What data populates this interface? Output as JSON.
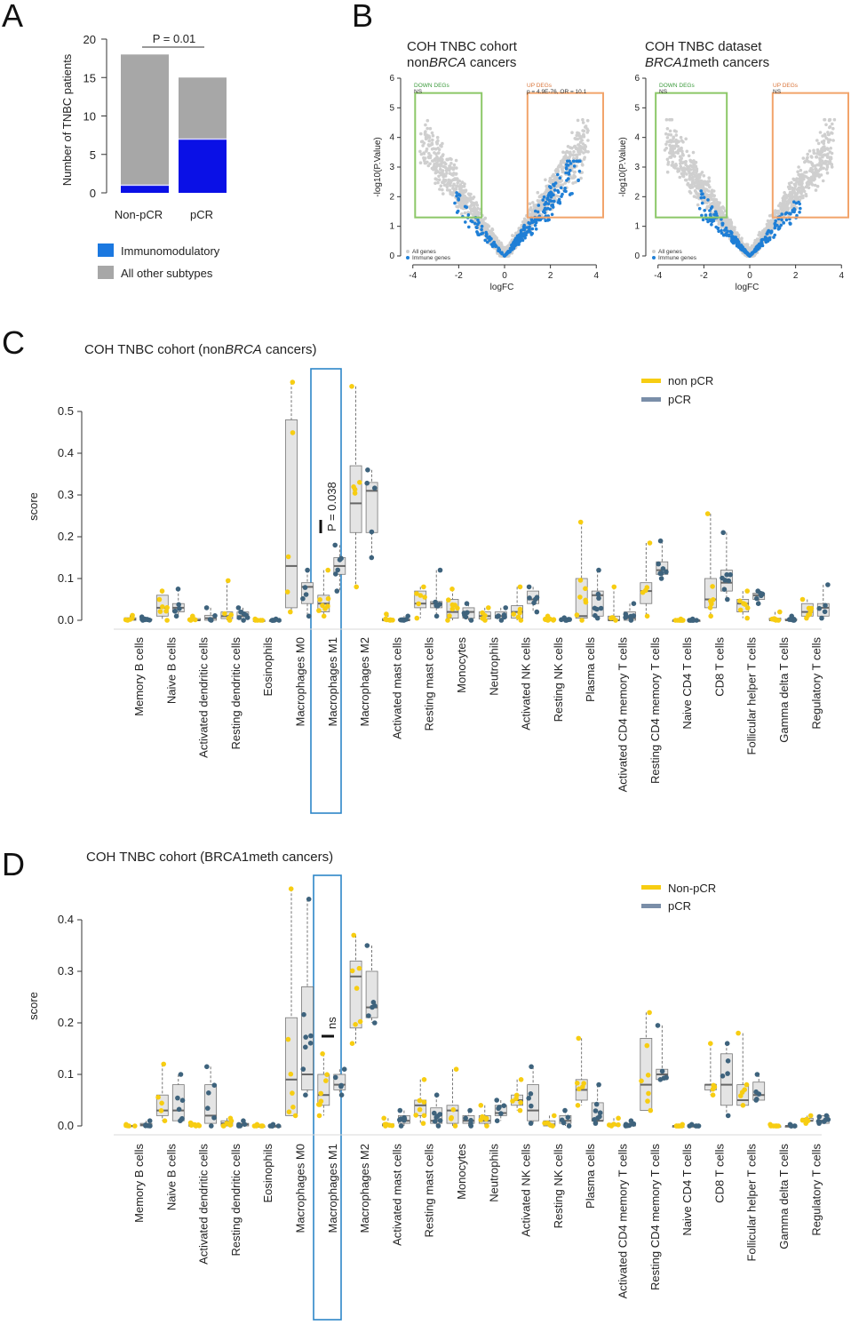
{
  "colors": {
    "blue": "#0a10e6",
    "grey_bar": "#a7a7a7",
    "legend_blue": "#1b78e0",
    "all_genes": "#cfcfcf",
    "immune_genes": "#1f7fd6",
    "down_box": "#8cc868",
    "up_box": "#f2a46b",
    "nonpcr": "#f7cd12",
    "pcr": "#3e637d",
    "box_fill": "#e4e4e4",
    "highlight": "#2d86c8"
  },
  "panelA": {
    "letter": "A",
    "pvalue_label": "P = 0.01",
    "legend": [
      {
        "label": "Immunomodulatory",
        "color": "#1b78e0"
      },
      {
        "label": "All other subtypes",
        "color": "#a7a7a7"
      }
    ],
    "chart_data": {
      "type": "bar",
      "stacked": true,
      "title": "",
      "ylabel": "Number of TNBC patients",
      "categories": [
        "Non-pCR",
        "pCR"
      ],
      "ylim": [
        0,
        20
      ],
      "yticks": [
        "0",
        "5",
        "10",
        "15",
        "20"
      ],
      "series": [
        {
          "name": "Immunomodulatory",
          "values": [
            1,
            7
          ]
        },
        {
          "name": "All other subtypes",
          "values": [
            17,
            8
          ]
        }
      ]
    }
  },
  "panelB": {
    "letter": "B",
    "plots": [
      {
        "title_line1": "COH TNBC cohort",
        "title_line2_parts": [
          "non",
          "BRCA",
          " cancers"
        ],
        "down_label": "DOWN DEGs",
        "down_stat": "NS",
        "up_label": "UP DEGs",
        "up_stat": "p = 4.9E-76, OR = 10.1",
        "legend_all": "All genes",
        "legend_immune": "Immune genes",
        "chart_data": {
          "type": "scatter",
          "xlabel": "logFC",
          "ylabel": "-log10(P.Value)",
          "xlim": [
            -4.3,
            4.3
          ],
          "ylim": [
            0,
            6
          ],
          "xticks": [
            "-4",
            "-2",
            "0",
            "2",
            "4"
          ],
          "yticks": [
            "0",
            "1",
            "2",
            "3",
            "4",
            "5",
            "6"
          ],
          "down_box": {
            "x": [
              -3.9,
              -1.0
            ],
            "y": [
              1.3,
              5.5
            ]
          },
          "up_box": {
            "x": [
              1.0,
              4.3
            ],
            "y": [
              1.3,
              5.5
            ]
          },
          "series": [
            {
              "name": "All genes"
            },
            {
              "name": "Immune genes"
            }
          ],
          "immune_enriched": "up"
        }
      },
      {
        "title_line1": "COH TNBC dataset",
        "title_line2_parts": [
          "BRCA1",
          "meth cancers"
        ],
        "down_label": "DOWN DEGs",
        "down_stat": "NS",
        "up_label": "UP DEGs",
        "up_stat": "NS",
        "legend_all": "All genes",
        "legend_immune": "Immune genes",
        "chart_data": {
          "type": "scatter",
          "xlabel": "logFC",
          "ylabel": "-log10(P.Value)",
          "xlim": [
            -4.3,
            4.3
          ],
          "ylim": [
            0,
            6
          ],
          "xticks": [
            "-4",
            "-2",
            "0",
            "2",
            "4"
          ],
          "yticks": [
            "0",
            "1",
            "2",
            "3",
            "4",
            "5",
            "6"
          ],
          "down_box": {
            "x": [
              -4.1,
              -1.0
            ],
            "y": [
              1.3,
              5.5
            ]
          },
          "up_box": {
            "x": [
              1.0,
              4.3
            ],
            "y": [
              1.3,
              5.5
            ]
          },
          "series": [
            {
              "name": "All genes"
            },
            {
              "name": "Immune genes"
            }
          ],
          "immune_enriched": "none"
        }
      }
    ]
  },
  "panelC": {
    "letter": "C",
    "title_parts": [
      "COH TNBC cohort (non",
      "BRCA",
      " cancers)"
    ],
    "legend": [
      {
        "label": "non pCR",
        "key": "nonpcr"
      },
      {
        "label": "pCR",
        "key": "pcr"
      }
    ],
    "annotation": "P = 0.038",
    "chart_data": {
      "type": "box",
      "ylabel": "score",
      "ylim": [
        0,
        0.55
      ],
      "yticks": [
        "0.0",
        "0.1",
        "0.2",
        "0.3",
        "0.4",
        "0.5"
      ],
      "highlight_category": "Macrophages M1",
      "categories": [
        "Memory B cells",
        "Naive B cells",
        "Activated dendritic cells",
        "Resting dendritic cells",
        "Eosinophils",
        "Macrophages M0",
        "Macrophages M1",
        "Macrophages M2",
        "Activated mast cells",
        "Resting mast cells",
        "Monocytes",
        "Neutrophils",
        "Activated NK cells",
        "Resting NK cells",
        "Plasma cells",
        "Activated CD4 memory T cells",
        "Resting CD4 memory T cells",
        "Naive CD4 T cells",
        "CD8 T cells",
        "Follicular helper T cells",
        "Gamma delta T cells",
        "Regulatory T cells"
      ],
      "series": [
        {
          "name": "non pCR",
          "boxes": [
            [
              0,
              0,
              0.002,
              0.006,
              0.012
            ],
            [
              0,
              0.01,
              0.03,
              0.06,
              0.07
            ],
            [
              0,
              0,
              0,
              0.004,
              0.01
            ],
            [
              0,
              0.004,
              0.01,
              0.02,
              0.095
            ],
            [
              0,
              0,
              0,
              0,
              0.003
            ],
            [
              0.02,
              0.03,
              0.13,
              0.48,
              0.57
            ],
            [
              0.01,
              0.02,
              0.04,
              0.06,
              0.12
            ],
            [
              0.08,
              0.21,
              0.28,
              0.37,
              0.56
            ],
            [
              0,
              0,
              0,
              0.004,
              0.015
            ],
            [
              0.005,
              0.03,
              0.04,
              0.07,
              0.08
            ],
            [
              0,
              0.005,
              0.02,
              0.05,
              0.075
            ],
            [
              0,
              0.003,
              0.01,
              0.02,
              0.03
            ],
            [
              0,
              0.005,
              0.02,
              0.035,
              0.08
            ],
            [
              0,
              0,
              0,
              0.003,
              0.01
            ],
            [
              0,
              0.005,
              0.01,
              0.1,
              0.235
            ],
            [
              0,
              0,
              0,
              0.01,
              0.08
            ],
            [
              0.01,
              0.04,
              0.07,
              0.09,
              0.185
            ],
            [
              0,
              0,
              0,
              0,
              0.003
            ],
            [
              0.01,
              0.03,
              0.05,
              0.1,
              0.255
            ],
            [
              0.005,
              0.02,
              0.04,
              0.05,
              0.07
            ],
            [
              0,
              0,
              0,
              0.005,
              0.02
            ],
            [
              0.005,
              0.01,
              0.02,
              0.04,
              0.05
            ]
          ]
        },
        {
          "name": "pCR",
          "boxes": [
            [
              0,
              0,
              0.002,
              0.003,
              0.008
            ],
            [
              0.01,
              0.02,
              0.03,
              0.04,
              0.075
            ],
            [
              0,
              0,
              0.005,
              0.012,
              0.03
            ],
            [
              0,
              0.003,
              0.01,
              0.02,
              0.03
            ],
            [
              0,
              0,
              0,
              0,
              0.003
            ],
            [
              0.01,
              0.04,
              0.08,
              0.09,
              0.12
            ],
            [
              0.07,
              0.11,
              0.13,
              0.15,
              0.18
            ],
            [
              0.15,
              0.21,
              0.31,
              0.33,
              0.36
            ],
            [
              0,
              0,
              0,
              0.003,
              0.01
            ],
            [
              0.01,
              0.03,
              0.04,
              0.045,
              0.12
            ],
            [
              0,
              0.005,
              0.02,
              0.03,
              0.04
            ],
            [
              0,
              0.005,
              0.01,
              0.02,
              0.03
            ],
            [
              0.02,
              0.04,
              0.05,
              0.07,
              0.08
            ],
            [
              0,
              0,
              0,
              0.002,
              0.006
            ],
            [
              0.005,
              0.01,
              0.06,
              0.07,
              0.12
            ],
            [
              0,
              0,
              0.005,
              0.02,
              0.04
            ],
            [
              0.1,
              0.11,
              0.12,
              0.14,
              0.19
            ],
            [
              0,
              0,
              0,
              0,
              0.003
            ],
            [
              0.05,
              0.07,
              0.09,
              0.12,
              0.21
            ],
            [
              0.04,
              0.05,
              0.06,
              0.065,
              0.07
            ],
            [
              0,
              0,
              0,
              0.003,
              0.01
            ],
            [
              0.005,
              0.01,
              0.03,
              0.04,
              0.085
            ]
          ]
        }
      ]
    }
  },
  "panelD": {
    "letter": "D",
    "title_parts": [
      "COH TNBC cohort (BRCA1meth cancers)",
      "",
      ""
    ],
    "legend": [
      {
        "label": "Non-pCR",
        "key": "nonpcr"
      },
      {
        "label": "pCR",
        "key": "pcr"
      }
    ],
    "annotation": "ns",
    "chart_data": {
      "type": "box",
      "ylabel": "score",
      "ylim": [
        0,
        0.46
      ],
      "yticks": [
        "0.0",
        "0.1",
        "0.2",
        "0.3",
        "0.4"
      ],
      "highlight_category": "Macrophages M1",
      "categories": [
        "Memory B cells",
        "Naive B cells",
        "Activated dendritic cells",
        "Resting dendritic cells",
        "Eosinophils",
        "Macrophages M0",
        "Macrophages M1",
        "Macrophages M2",
        "Activated mast cells",
        "Resting mast cells",
        "Monocytes",
        "Neutrophils",
        "Activated NK cells",
        "Resting NK cells",
        "Plasma cells",
        "Activated CD4 memory T cells",
        "Resting CD4 memory T cells",
        "Naive CD4 T cells",
        "CD8 T cells",
        "Follicular helper T cells",
        "Gamma delta T cells",
        "Regulatory T cells"
      ],
      "series": [
        {
          "name": "Non-pCR",
          "boxes": [
            [
              0,
              0,
              0,
              0.001,
              0.003
            ],
            [
              0.01,
              0.02,
              0.03,
              0.06,
              0.12
            ],
            [
              0,
              0,
              0,
              0.003,
              0.006
            ],
            [
              0,
              0,
              0.005,
              0.01,
              0.015
            ],
            [
              0,
              0,
              0,
              0,
              0.003
            ],
            [
              0.02,
              0.02,
              0.09,
              0.21,
              0.46
            ],
            [
              0.02,
              0.04,
              0.06,
              0.1,
              0.14
            ],
            [
              0.16,
              0.19,
              0.29,
              0.32,
              0.37
            ],
            [
              0,
              0,
              0.002,
              0.004,
              0.015
            ],
            [
              0.005,
              0.02,
              0.04,
              0.05,
              0.09
            ],
            [
              0,
              0.005,
              0.03,
              0.04,
              0.11
            ],
            [
              0,
              0.005,
              0.01,
              0.02,
              0.04
            ],
            [
              0.03,
              0.04,
              0.05,
              0.06,
              0.09
            ],
            [
              0,
              0,
              0.003,
              0.01,
              0.02
            ],
            [
              0.04,
              0.05,
              0.07,
              0.09,
              0.17
            ],
            [
              0,
              0,
              0.002,
              0.005,
              0.015
            ],
            [
              0.03,
              0.03,
              0.08,
              0.17,
              0.22
            ],
            [
              0,
              0,
              0,
              0,
              0.003
            ],
            [
              0.06,
              0.07,
              0.08,
              0.08,
              0.16
            ],
            [
              0.04,
              0.04,
              0.05,
              0.08,
              0.18
            ],
            [
              0,
              0,
              0,
              0,
              0.003
            ],
            [
              0.005,
              0.01,
              0.01,
              0.015,
              0.02
            ]
          ]
        },
        {
          "name": "pCR",
          "boxes": [
            [
              0,
              0,
              0.002,
              0.005,
              0.01
            ],
            [
              0.01,
              0.01,
              0.03,
              0.08,
              0.1
            ],
            [
              0,
              0.005,
              0.02,
              0.08,
              0.115
            ],
            [
              0,
              0,
              0.003,
              0.005,
              0.01
            ],
            [
              0,
              0,
              0,
              0,
              0.003
            ],
            [
              0.06,
              0.07,
              0.1,
              0.27,
              0.44
            ],
            [
              0.06,
              0.07,
              0.08,
              0.1,
              0.11
            ],
            [
              0.2,
              0.21,
              0.23,
              0.3,
              0.35
            ],
            [
              0,
              0.005,
              0.01,
              0.02,
              0.03
            ],
            [
              0,
              0.005,
              0.01,
              0.035,
              0.06
            ],
            [
              0,
              0.005,
              0.01,
              0.02,
              0.03
            ],
            [
              0.01,
              0.02,
              0.025,
              0.04,
              0.05
            ],
            [
              0.005,
              0.01,
              0.03,
              0.08,
              0.115
            ],
            [
              0,
              0.005,
              0.01,
              0.02,
              0.03
            ],
            [
              0.005,
              0.01,
              0.01,
              0.045,
              0.08
            ],
            [
              0,
              0,
              0.002,
              0.005,
              0.01
            ],
            [
              0.09,
              0.09,
              0.1,
              0.11,
              0.195
            ],
            [
              0,
              0,
              0,
              0,
              0.003
            ],
            [
              0.02,
              0.04,
              0.08,
              0.14,
              0.16
            ],
            [
              0.05,
              0.05,
              0.06,
              0.085,
              0.1
            ],
            [
              0,
              0,
              0,
              0,
              0.003
            ],
            [
              0.005,
              0.005,
              0.01,
              0.02,
              0.02
            ]
          ]
        }
      ]
    }
  }
}
